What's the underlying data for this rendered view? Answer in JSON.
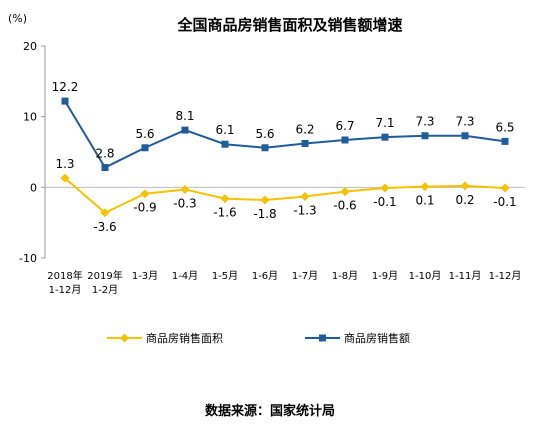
{
  "chart_data": {
    "type": "line",
    "title": "全国商品房销售面积及销售额增速",
    "ylabel": "(%)",
    "ylim": [
      -10,
      20
    ],
    "yticks": [
      -10,
      0,
      10,
      20
    ],
    "grid": false,
    "legend_position": "bottom",
    "categories": [
      [
        "2018年",
        "1-12月"
      ],
      [
        "2019年",
        "1-2月"
      ],
      [
        "1-3月"
      ],
      [
        "1-4月"
      ],
      [
        "1-5月"
      ],
      [
        "1-6月"
      ],
      [
        "1-7月"
      ],
      [
        "1-8月"
      ],
      [
        "1-9月"
      ],
      [
        "1-10月"
      ],
      [
        "1-11月"
      ],
      [
        "1-12月"
      ]
    ],
    "series": [
      {
        "name": "商品房销售面积",
        "color": "#F5C200",
        "marker": "diamond",
        "values": [
          1.3,
          -3.6,
          -0.9,
          -0.3,
          -1.6,
          -1.8,
          -1.3,
          -0.6,
          -0.1,
          0.1,
          0.2,
          -0.1
        ],
        "labels": [
          "1.3",
          "-3.6",
          "-0.9",
          "-0.3",
          "-1.6",
          "-1.8",
          "-1.3",
          "-0.6",
          "-0.1",
          "0.1",
          "0.2",
          "-0.1"
        ]
      },
      {
        "name": "商品房销售额",
        "color": "#1F5C99",
        "marker": "square",
        "values": [
          12.2,
          2.8,
          5.6,
          8.1,
          6.1,
          5.6,
          6.2,
          6.7,
          7.1,
          7.3,
          7.3,
          6.5
        ],
        "labels": [
          "12.2",
          "2.8",
          "5.6",
          "8.1",
          "6.1",
          "5.6",
          "6.2",
          "6.7",
          "7.1",
          "7.3",
          "7.3",
          "6.5"
        ]
      }
    ],
    "source": "数据来源：国家统计局"
  }
}
